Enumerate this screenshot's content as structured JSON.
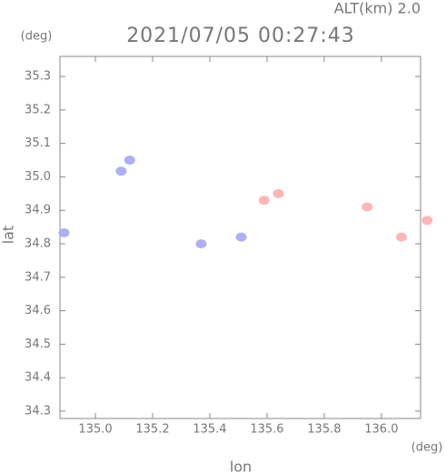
{
  "chart_data": {
    "type": "scatter",
    "title": "2021/07/05 00:27:43",
    "subtitle": "ALT(km) 2.0",
    "y_unit": "(deg)",
    "x_unit": "(deg)",
    "x_label": "lon",
    "y_label": "lat",
    "xlim": [
      134.876,
      136.137
    ],
    "ylim": [
      34.278,
      35.36
    ],
    "xticks": [
      {
        "value": 135.0,
        "label": "135.0"
      },
      135.2,
      135.4,
      135.6,
      135.8,
      {
        "value": 136.0,
        "label": "136.0"
      }
    ],
    "yticks": [
      34.3,
      34.4,
      34.5,
      34.6,
      34.7,
      34.8,
      34.9,
      {
        "value": 35.0,
        "label": "35.0"
      },
      35.1,
      35.2,
      35.3
    ],
    "series": [
      {
        "color": "#aeb0f4",
        "x": [
          134.89,
          135.09,
          135.12,
          135.37,
          135.51
        ],
        "y": [
          34.833,
          35.017,
          35.05,
          34.8,
          34.82
        ]
      },
      {
        "color": "#ffb6b6",
        "x": [
          135.59,
          135.64,
          135.95,
          136.07,
          136.16
        ],
        "y": [
          34.93,
          34.95,
          34.91,
          34.82,
          34.87
        ]
      }
    ]
  }
}
